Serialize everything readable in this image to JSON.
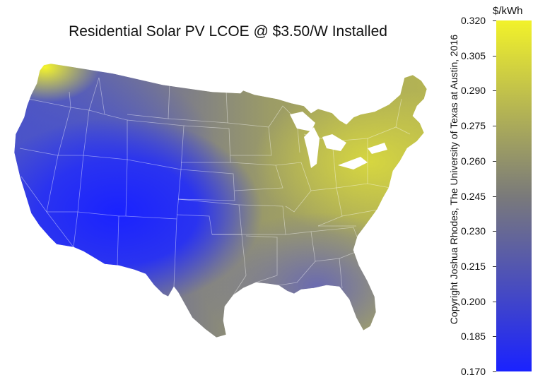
{
  "title": "Residential Solar PV LCOE @ $3.50/W Installed",
  "copyright": "Copyright Joshua Rhodes, The University of Texas at Austin, 2016",
  "legend": {
    "unit": "$/kWh",
    "min": 0.17,
    "max": 0.32,
    "ticks": [
      "0.320",
      "0.305",
      "0.290",
      "0.275",
      "0.260",
      "0.245",
      "0.230",
      "0.215",
      "0.200",
      "0.185",
      "0.170"
    ],
    "color_low": "#1a22ff",
    "color_mid": "#7a7a7a",
    "color_high": "#f2f22a"
  },
  "map": {
    "region": "Contiguous United States",
    "colors": {
      "southwest": "#1a22ff",
      "west": "#4a55d8",
      "plains": "#8a8a6a",
      "east": "#b8b84a",
      "pacific_northwest": "#f0f03a",
      "southeast": "#6a6aa0"
    }
  }
}
